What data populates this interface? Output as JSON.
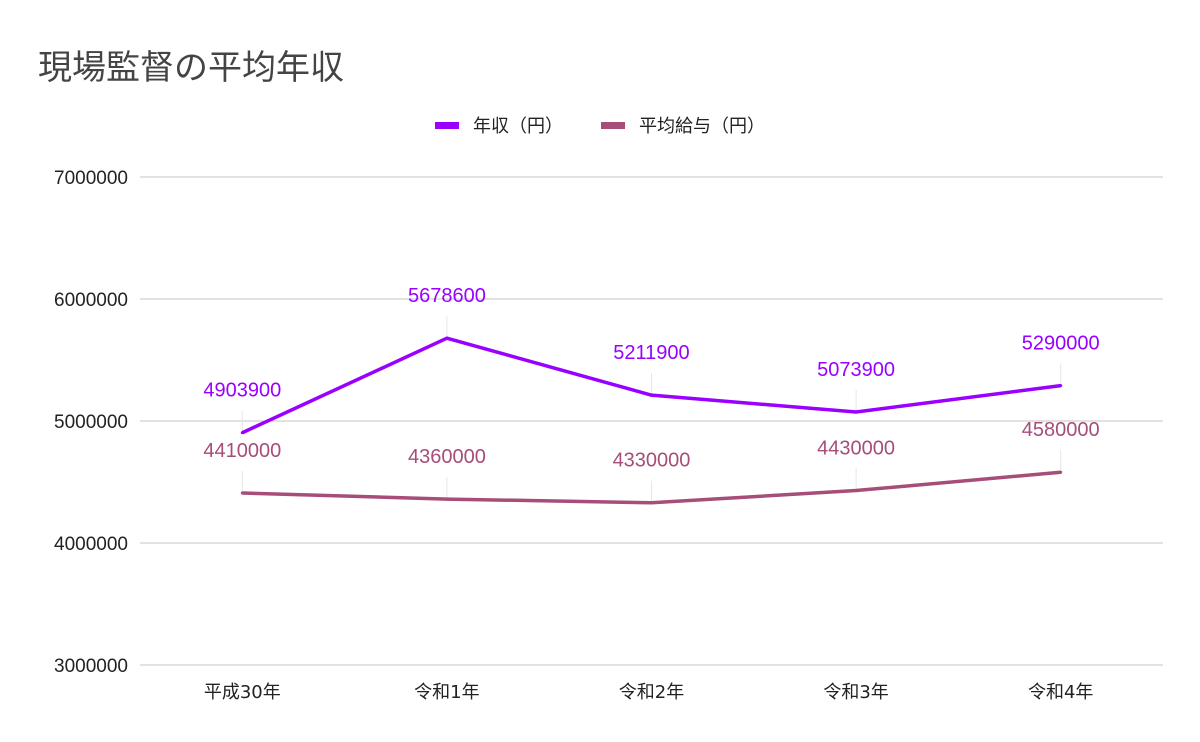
{
  "chart_data": {
    "type": "line",
    "title": "現場監督の平均年収",
    "categories": [
      "平成30年",
      "令和1年",
      "令和2年",
      "令和3年",
      "令和4年"
    ],
    "series": [
      {
        "name": "年収（円）",
        "color": "#9900ff",
        "values": [
          4903900,
          5678600,
          5211900,
          5073900,
          5290000
        ]
      },
      {
        "name": "平均給与（円）",
        "color": "#a64d79",
        "values": [
          4410000,
          4360000,
          4330000,
          4430000,
          4580000
        ]
      }
    ],
    "ylim": [
      3000000,
      7000000
    ],
    "yticks": [
      3000000,
      4000000,
      5000000,
      6000000,
      7000000
    ],
    "grid": true,
    "legend": "top-center",
    "xlabel": "",
    "ylabel": ""
  }
}
